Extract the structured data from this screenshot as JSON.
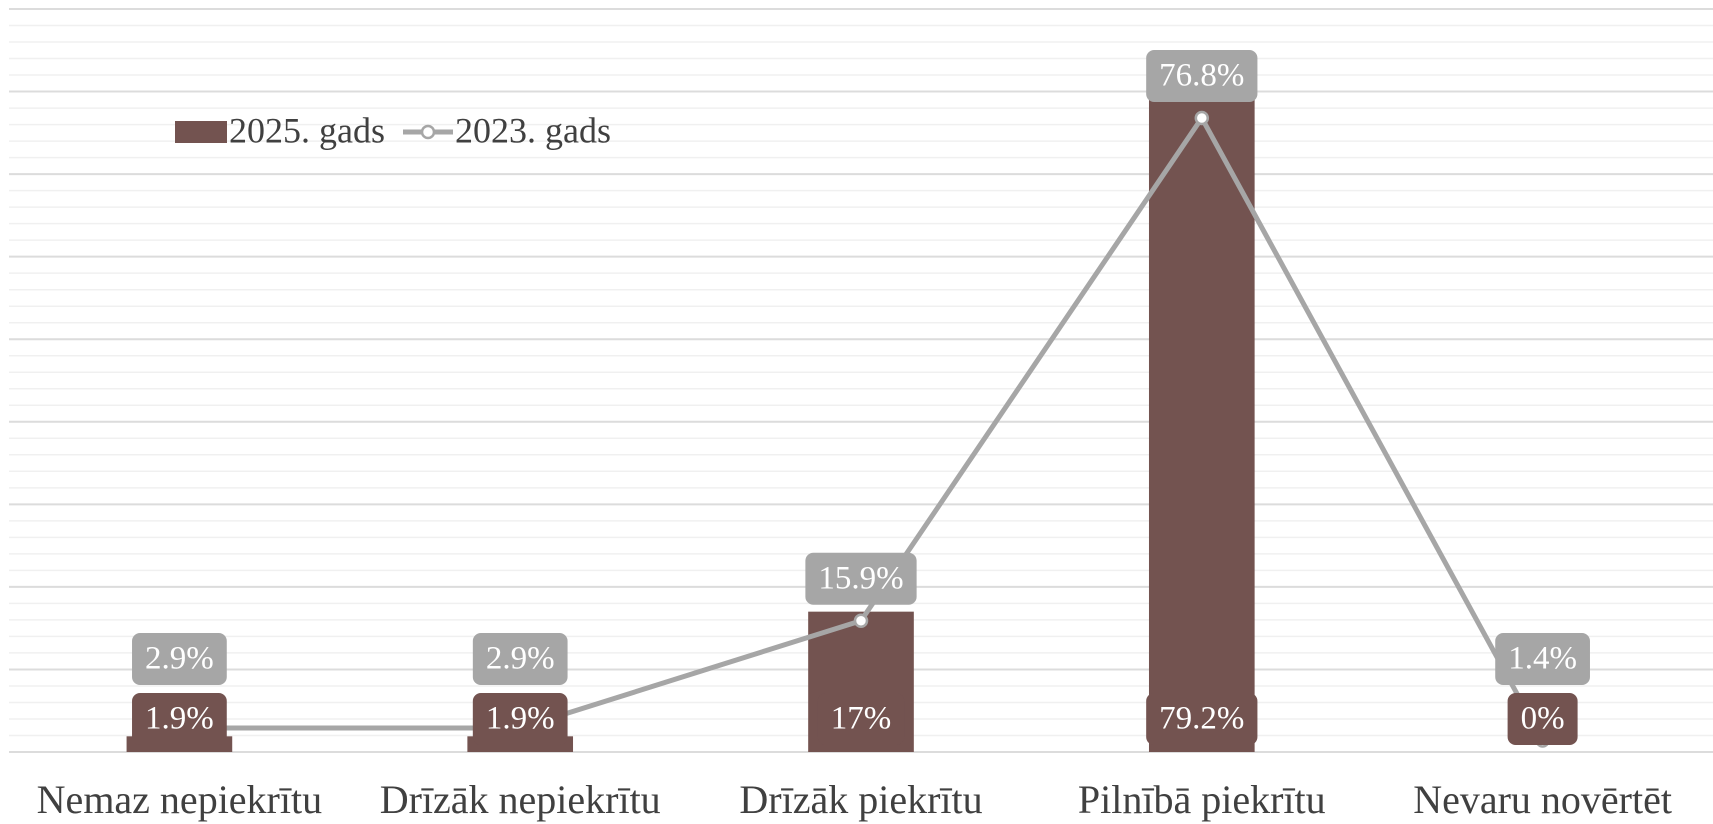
{
  "chart_data": {
    "type": "bar+line",
    "categories": [
      "Nemaz nepiekrītu",
      "Drīzāk nepiekrītu",
      "Drīzāk piekrītu",
      "Pilnībā piekrītu",
      "Nevaru novērtēt"
    ],
    "series": [
      {
        "name": "2025. gads",
        "type": "bar",
        "color": "#735350",
        "values": [
          1.9,
          1.9,
          17,
          79.2,
          0
        ],
        "value_labels": [
          "1.9%",
          "1.9%",
          "17%",
          "79.2%",
          "0%"
        ]
      },
      {
        "name": "2023. gads",
        "type": "line",
        "color": "#a6a6a6",
        "values": [
          2.9,
          2.9,
          15.9,
          76.8,
          1.4
        ],
        "value_labels": [
          "2.9%",
          "2.9%",
          "15.9%",
          "76.8%",
          "1.4%"
        ]
      }
    ],
    "ylim": [
      0,
      90
    ],
    "yticks": [
      0,
      10,
      20,
      30,
      40,
      50,
      60,
      70,
      80,
      90
    ],
    "grid": true,
    "legend": "top-left"
  }
}
